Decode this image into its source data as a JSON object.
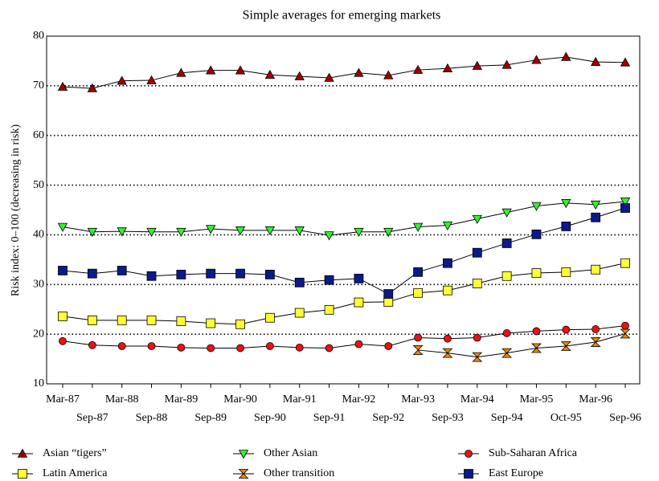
{
  "chart_data": {
    "type": "line",
    "title": "Simple averages for emerging markets",
    "y_label": "Risk index: 0–100 (decreasing in risk)",
    "categories": [
      "Mar-87",
      "Sep-87",
      "Mar-88",
      "Sep-88",
      "Mar-89",
      "Sep-89",
      "Mar-90",
      "Sep-90",
      "Mar-91",
      "Sep-91",
      "Mar-92",
      "Sep-92",
      "Mar-93",
      "Sep-93",
      "Mar-94",
      "Sep-94",
      "Mar-95",
      "Oct-95",
      "Mar-96",
      "Sep-96"
    ],
    "ylim": [
      10,
      80
    ],
    "yticks": [
      10,
      20,
      30,
      40,
      50,
      60,
      70,
      80
    ],
    "grid": true,
    "series": [
      {
        "name": "Asian “tigers”",
        "color": "#a00000",
        "marker": "triangle-up",
        "values": [
          69.8,
          69.5,
          71.0,
          71.1,
          72.6,
          73.1,
          73.1,
          72.2,
          71.9,
          71.6,
          72.6,
          72.1,
          73.2,
          73.5,
          74.0,
          74.2,
          75.2,
          75.8,
          74.8,
          74.7
        ]
      },
      {
        "name": "Other Asian",
        "color": "#33ee33",
        "marker": "triangle-down",
        "values": [
          41.6,
          40.6,
          40.7,
          40.6,
          40.6,
          41.2,
          40.9,
          40.9,
          40.9,
          39.9,
          40.6,
          40.6,
          41.6,
          41.9,
          43.2,
          44.5,
          45.8,
          46.4,
          46.1,
          46.7
        ]
      },
      {
        "name": "Sub-Saharan Africa",
        "color": "#ee1111",
        "marker": "circle",
        "values": [
          18.6,
          17.8,
          17.6,
          17.6,
          17.3,
          17.2,
          17.2,
          17.6,
          17.3,
          17.2,
          18.0,
          17.6,
          19.3,
          19.1,
          19.3,
          20.2,
          20.6,
          20.9,
          21.0,
          21.7
        ]
      },
      {
        "name": "Latin America",
        "color": "#ffff33",
        "marker": "square",
        "values": [
          23.6,
          22.8,
          22.8,
          22.8,
          22.6,
          22.2,
          22.0,
          23.3,
          24.3,
          24.9,
          26.4,
          26.5,
          28.3,
          28.8,
          30.2,
          31.7,
          32.3,
          32.5,
          33.0,
          34.3
        ]
      },
      {
        "name": "Other transition",
        "color": "#ee8800",
        "marker": "hourglass",
        "values": [
          null,
          null,
          null,
          null,
          null,
          null,
          null,
          null,
          null,
          null,
          null,
          null,
          16.8,
          16.2,
          15.4,
          16.2,
          17.2,
          17.6,
          18.4,
          20.1
        ]
      },
      {
        "name": "East Europe",
        "color": "#0a1a8a",
        "marker": "square",
        "values": [
          32.8,
          32.2,
          32.8,
          31.7,
          32.0,
          32.2,
          32.2,
          32.0,
          30.4,
          30.9,
          31.2,
          28.1,
          32.5,
          34.3,
          36.4,
          38.3,
          40.1,
          41.7,
          43.5,
          45.4
        ]
      }
    ]
  }
}
